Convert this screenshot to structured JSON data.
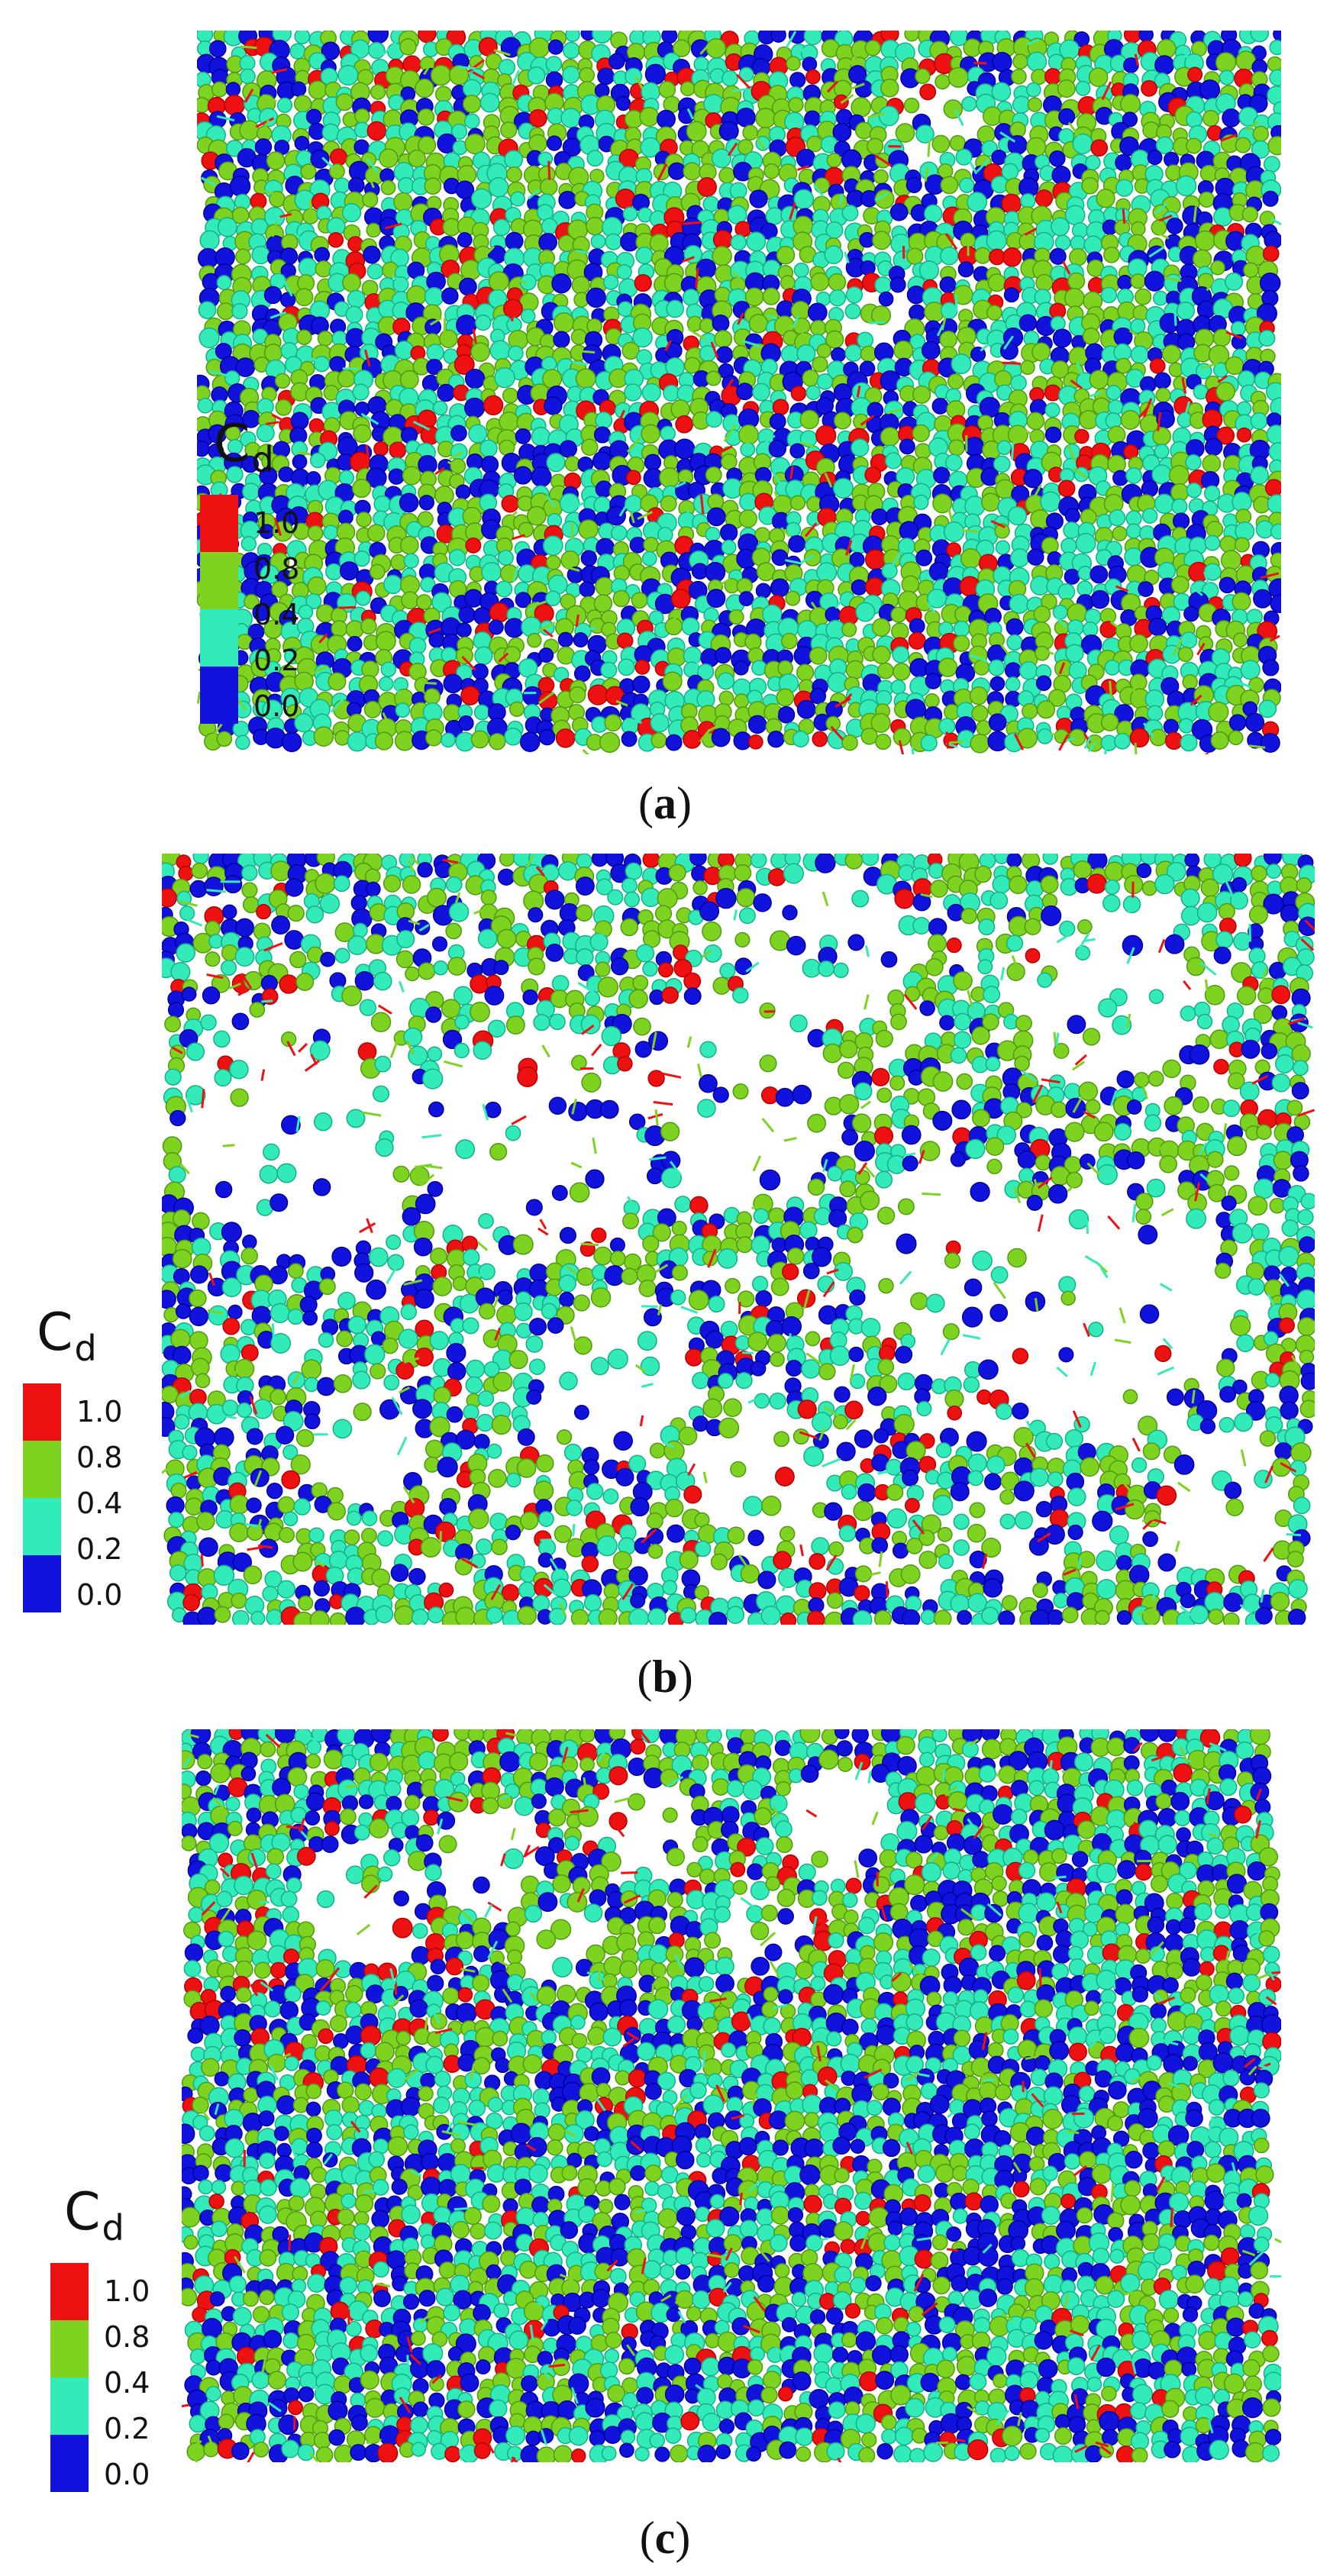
{
  "legend": {
    "title": "C",
    "subscript": "d",
    "ticks": [
      "1.0",
      "0.8",
      "0.4",
      "0.2",
      "0.0"
    ],
    "colors": [
      "#ee1111",
      "#7ed321",
      "#33ebb8",
      "#1212dd"
    ],
    "edge_colors": [
      "#b80000",
      "#4f9a10",
      "#14b087",
      "#0000a0"
    ]
  },
  "panels": [
    {
      "label": "a",
      "open_paren": "(",
      "close_paren": ")",
      "porosity": "low"
    },
    {
      "label": "b",
      "open_paren": "(",
      "close_paren": ")",
      "porosity": "high"
    },
    {
      "label": "c",
      "open_paren": "(",
      "close_paren": ")",
      "porosity": "upper-voids"
    }
  ]
}
